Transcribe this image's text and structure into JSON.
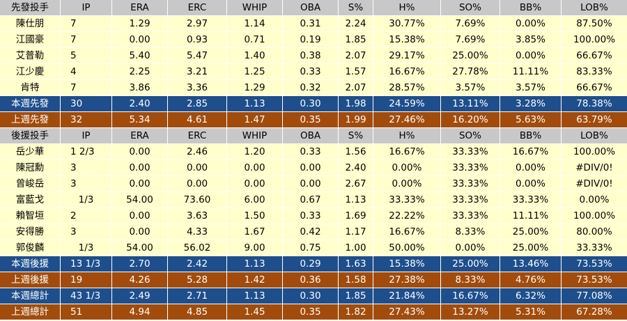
{
  "colors": {
    "header_bg": "#c8c8c8",
    "data_bg": "#ffffcc",
    "this_week_bg": "#1e4e8c",
    "last_week_bg": "#a14c0c",
    "total_text": "#ffffff",
    "grid_line": "#ffffff"
  },
  "table": {
    "rows": [
      {
        "type": "header",
        "cells": [
          "先發投手",
          "IP",
          "ERA",
          "ERC",
          "WHIP",
          "OBA",
          "S%",
          "H%",
          "SO%",
          "BB%",
          "LOB%"
        ]
      },
      {
        "type": "data",
        "ip_align": "left",
        "cells": [
          "陳仕朋",
          "7",
          "1.29",
          "2.97",
          "1.14",
          "0.31",
          "2.24",
          "30.77%",
          "7.69%",
          "0.00%",
          "87.50%"
        ]
      },
      {
        "type": "data",
        "ip_align": "left",
        "cells": [
          "江國豪",
          "7",
          "0.00",
          "0.93",
          "0.71",
          "0.19",
          "1.85",
          "15.38%",
          "7.69%",
          "3.85%",
          "100.00%"
        ]
      },
      {
        "type": "data",
        "ip_align": "left",
        "cells": [
          "艾普勒",
          "5",
          "5.40",
          "5.47",
          "1.40",
          "0.38",
          "2.07",
          "29.17%",
          "25.00%",
          "0.00%",
          "66.67%"
        ]
      },
      {
        "type": "data",
        "ip_align": "left",
        "cells": [
          "江少慶",
          "4",
          "2.25",
          "3.21",
          "1.25",
          "0.33",
          "1.57",
          "16.67%",
          "27.78%",
          "11.11%",
          "83.33%"
        ]
      },
      {
        "type": "data",
        "ip_align": "left",
        "cells": [
          "肯特",
          "7",
          "3.86",
          "3.36",
          "1.29",
          "0.32",
          "2.07",
          "28.57%",
          "3.57%",
          "3.57%",
          "66.67%"
        ]
      },
      {
        "type": "this-week",
        "ip_align": "left",
        "cells": [
          "本週先發",
          "30",
          "2.40",
          "2.85",
          "1.13",
          "0.30",
          "1.98",
          "24.59%",
          "13.11%",
          "3.28%",
          "78.38%"
        ]
      },
      {
        "type": "last-week",
        "ip_align": "left",
        "cells": [
          "上週先發",
          "32",
          "5.34",
          "4.61",
          "1.47",
          "0.35",
          "1.99",
          "27.46%",
          "16.20%",
          "5.63%",
          "63.79%"
        ]
      },
      {
        "type": "header",
        "cells": [
          "後援投手",
          "IP",
          "ERA",
          "ERC",
          "WHIP",
          "OBA",
          "S%",
          "H%",
          "SO%",
          "BB%",
          "LOB%"
        ]
      },
      {
        "type": "data",
        "ip_align": "left",
        "cells": [
          "岳少華",
          "1 2/3",
          "0.00",
          "2.46",
          "1.20",
          "0.33",
          "1.56",
          "16.67%",
          "33.33%",
          "16.67%",
          "100.00%"
        ]
      },
      {
        "type": "data",
        "ip_align": "left",
        "cells": [
          "陳冠勳",
          "3",
          "0.00",
          "0.00",
          "0.00",
          "0.00",
          "2.40",
          "0.00%",
          "33.33%",
          "0.00%",
          "#DIV/0!"
        ]
      },
      {
        "type": "data",
        "ip_align": "left",
        "cells": [
          "曾峻岳",
          "3",
          "0.00",
          "0.00",
          "0.00",
          "0.00",
          "2.67",
          "0.00%",
          "33.33%",
          "0.00%",
          "#DIV/0!"
        ]
      },
      {
        "type": "data",
        "ip_align": "center",
        "cells": [
          "富藍戈",
          "1/3",
          "54.00",
          "73.60",
          "6.00",
          "0.67",
          "1.13",
          "33.33%",
          "33.33%",
          "33.33%",
          "0.00%"
        ]
      },
      {
        "type": "data",
        "ip_align": "left",
        "cells": [
          "賴智垣",
          "2",
          "0.00",
          "3.63",
          "1.50",
          "0.33",
          "1.69",
          "22.22%",
          "33.33%",
          "11.11%",
          "100.00%"
        ]
      },
      {
        "type": "data",
        "ip_align": "left",
        "cells": [
          "安得勝",
          "3",
          "0.00",
          "4.33",
          "1.67",
          "0.42",
          "1.17",
          "16.67%",
          "8.33%",
          "25.00%",
          "80.00%"
        ]
      },
      {
        "type": "data",
        "ip_align": "center",
        "cells": [
          "郭俊麟",
          "1/3",
          "54.00",
          "56.02",
          "9.00",
          "0.75",
          "1.00",
          "50.00%",
          "0.00%",
          "25.00%",
          "33.33%"
        ]
      },
      {
        "type": "this-week",
        "ip_align": "left",
        "cells": [
          "本週後援",
          "13 1/3",
          "2.70",
          "2.42",
          "1.13",
          "0.29",
          "1.63",
          "15.38%",
          "25.00%",
          "13.46%",
          "73.53%"
        ]
      },
      {
        "type": "last-week",
        "ip_align": "left",
        "cells": [
          "上週後援",
          "19",
          "4.26",
          "5.28",
          "1.42",
          "0.36",
          "1.58",
          "27.38%",
          "8.33%",
          "4.76%",
          "73.53%"
        ]
      },
      {
        "type": "this-week",
        "ip_align": "left",
        "cells": [
          "本週總計",
          "43 1/3",
          "2.49",
          "2.71",
          "1.13",
          "0.30",
          "1.85",
          "21.84%",
          "16.67%",
          "6.32%",
          "77.08%"
        ]
      },
      {
        "type": "last-week",
        "ip_align": "left",
        "cells": [
          "上週總計",
          "51",
          "4.94",
          "4.85",
          "1.45",
          "0.35",
          "1.82",
          "27.43%",
          "13.27%",
          "5.31%",
          "67.28%"
        ]
      }
    ]
  }
}
